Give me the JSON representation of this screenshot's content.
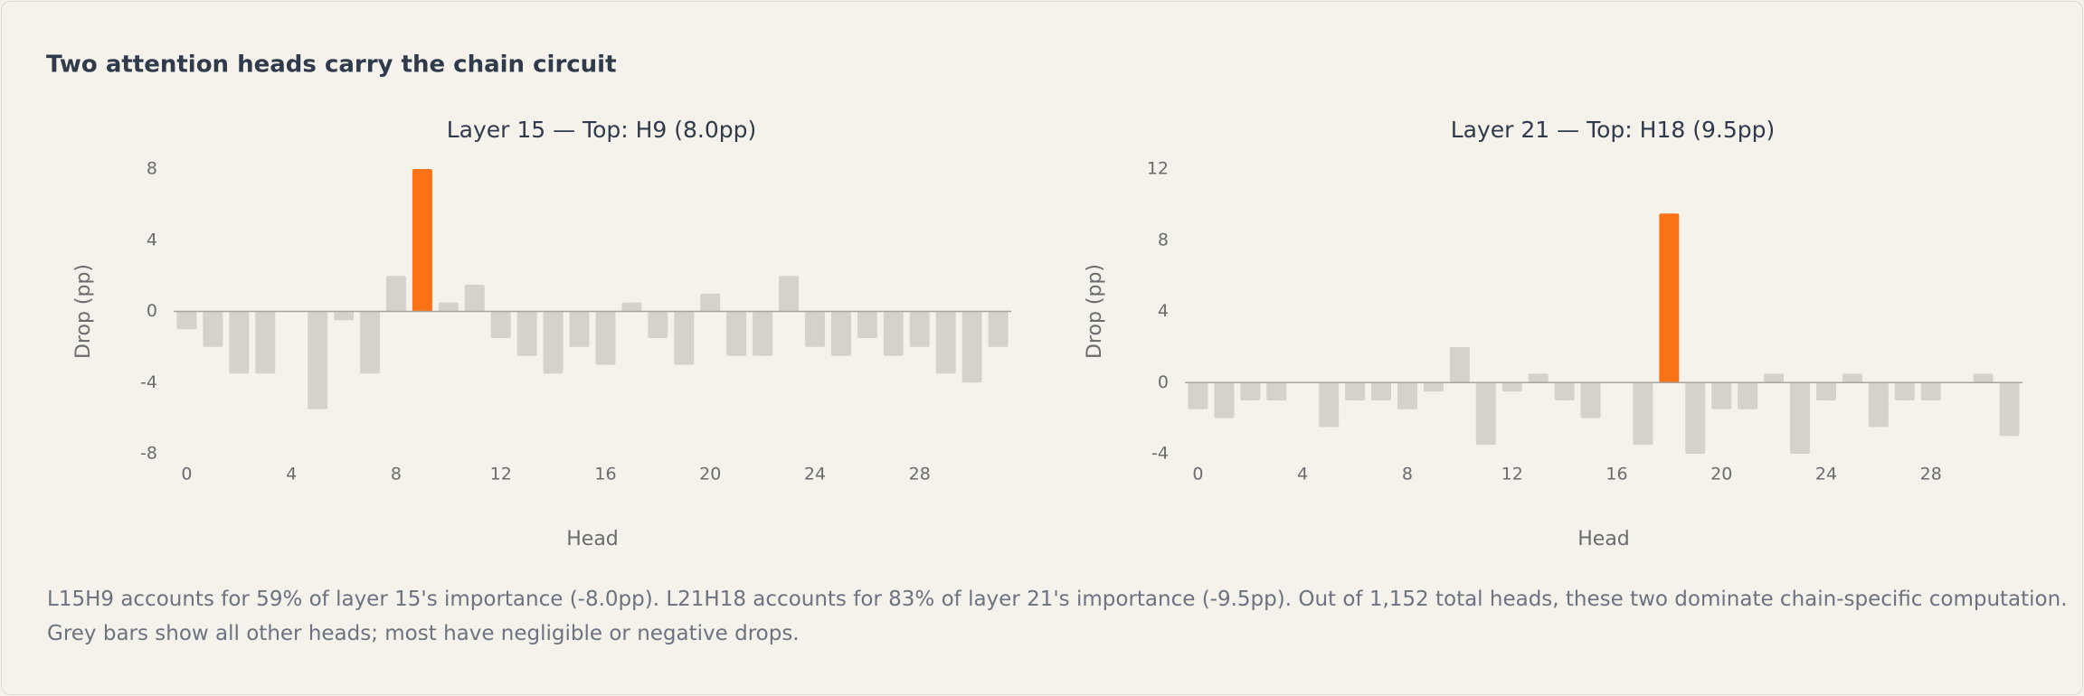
{
  "title": "Two attention heads carry the chain circuit",
  "chart_data": [
    {
      "type": "bar",
      "title": "Layer 15 — Top: H9 (8.0pp)",
      "x_label": "Head",
      "y_label": "Drop (pp)",
      "x": [
        0,
        1,
        2,
        3,
        4,
        5,
        6,
        7,
        8,
        9,
        10,
        11,
        12,
        13,
        14,
        15,
        16,
        17,
        18,
        19,
        20,
        21,
        22,
        23,
        24,
        25,
        26,
        27,
        28,
        29,
        30,
        31
      ],
      "values": [
        -1,
        -2,
        -3.5,
        -3.5,
        0,
        -5.5,
        -0.5,
        -3.5,
        2,
        8.0,
        0.5,
        1.5,
        -1.5,
        -2.5,
        -3.5,
        -2,
        -3,
        0.5,
        -1.5,
        -3,
        1,
        -2.5,
        -2.5,
        2,
        -2,
        -2.5,
        -1.5,
        -2.5,
        -2,
        -3.5,
        -4,
        -2
      ],
      "color": "#d6d2cb",
      "highlight": {
        "x": 9,
        "color": "#f97316"
      },
      "xlim": [
        -0.5,
        31.5
      ],
      "xticks": [
        0,
        4,
        8,
        12,
        16,
        20,
        24,
        28
      ],
      "ylim": [
        -8,
        8
      ],
      "yticks": [
        -8,
        -4,
        0,
        4,
        8
      ]
    },
    {
      "type": "bar",
      "title": "Layer 21 — Top: H18 (9.5pp)",
      "x_label": "Head",
      "y_label": "Drop (pp)",
      "x": [
        0,
        1,
        2,
        3,
        4,
        5,
        6,
        7,
        8,
        9,
        10,
        11,
        12,
        13,
        14,
        15,
        16,
        17,
        18,
        19,
        20,
        21,
        22,
        23,
        24,
        25,
        26,
        27,
        28,
        29,
        30,
        31
      ],
      "values": [
        -1.5,
        -2,
        -1,
        -1,
        0,
        -2.5,
        -1,
        -1,
        -1.5,
        -0.5,
        2,
        -3.5,
        -0.5,
        0.5,
        -1,
        -2,
        0,
        -3.5,
        9.5,
        -4,
        -1.5,
        -1.5,
        0.5,
        -4,
        -1,
        0.5,
        -2.5,
        -1,
        -1,
        0,
        0.5,
        -3
      ],
      "color": "#d6d2cb",
      "highlight": {
        "x": 18,
        "color": "#f97316"
      },
      "xlim": [
        -0.5,
        31.5
      ],
      "xticks": [
        0,
        4,
        8,
        12,
        16,
        20,
        24,
        28
      ],
      "ylim": [
        -4,
        12
      ],
      "yticks": [
        -4,
        0,
        4,
        8,
        12
      ]
    }
  ],
  "footer": [
    "L15H9 accounts for 59% of layer 15's importance (-8.0pp). L21H18 accounts for 83% of layer 21's importance (-9.5pp). Out of 1,152 total heads, these two dominate chain-specific computation.",
    "Grey bars show all other heads; most have negligible or negative drops."
  ]
}
